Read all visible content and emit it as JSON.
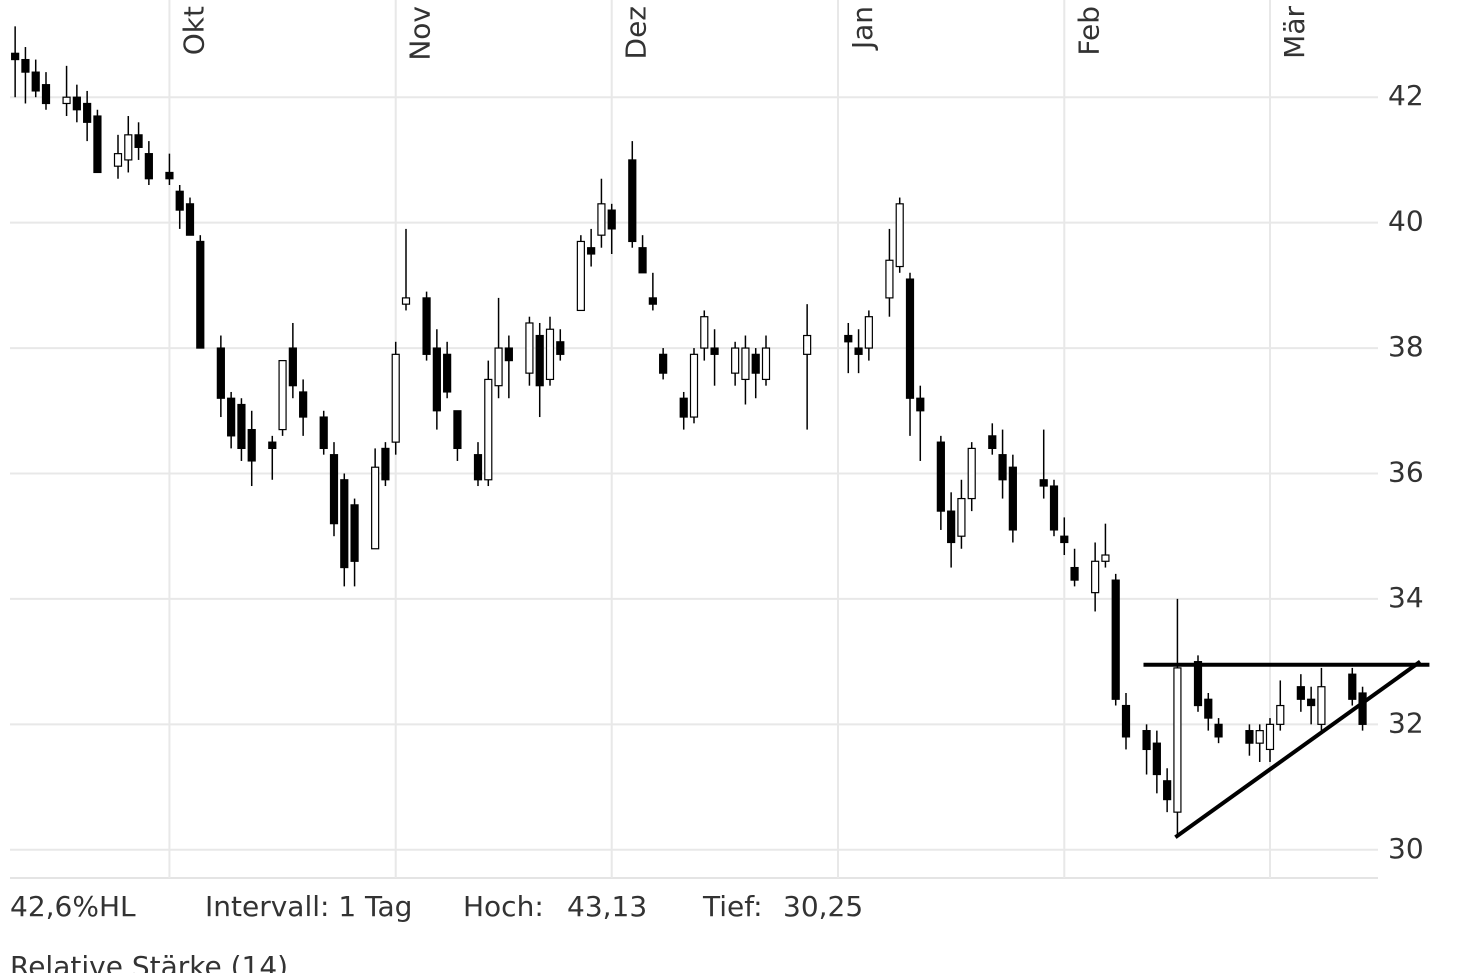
{
  "chart_data": {
    "type": "candlestick",
    "categories": [
      null,
      null,
      null,
      null,
      null,
      null,
      null,
      null,
      null,
      null,
      null,
      null,
      null,
      null,
      null,
      "Okt",
      null,
      null,
      null,
      null,
      null,
      null,
      null,
      null,
      null,
      null,
      null,
      null,
      null,
      null,
      null,
      null,
      null,
      null,
      null,
      null,
      null,
      "Nov",
      null,
      null,
      null,
      null,
      null,
      null,
      null,
      null,
      null,
      null,
      null,
      null,
      null,
      null,
      null,
      null,
      null,
      null,
      null,
      null,
      "Dez",
      null,
      null,
      null,
      null,
      null,
      null,
      null,
      null,
      null,
      null,
      null,
      null,
      null,
      null,
      null,
      null,
      null,
      null,
      null,
      null,
      null,
      "Jan",
      null,
      null,
      null,
      null,
      null,
      null,
      null,
      null,
      null,
      null,
      null,
      null,
      null,
      null,
      null,
      null,
      null,
      null,
      null,
      null,
      null,
      "Feb",
      null,
      null,
      null,
      null,
      null,
      null,
      null,
      null,
      null,
      null,
      null,
      null,
      null,
      null,
      null,
      null,
      null,
      null,
      null,
      "Mär",
      null,
      null,
      null,
      null,
      null,
      null,
      null,
      null,
      null,
      null
    ],
    "open": [
      42.7,
      42.6,
      42.4,
      42.2,
      null,
      41.9,
      42.0,
      41.9,
      41.7,
      null,
      40.9,
      41.0,
      41.4,
      41.1,
      null,
      40.8,
      40.5,
      40.3,
      39.7,
      null,
      38.0,
      37.2,
      37.1,
      36.7,
      null,
      36.5,
      36.7,
      38.0,
      37.3,
      null,
      36.9,
      36.3,
      35.9,
      35.5,
      null,
      34.8,
      36.4,
      36.5,
      38.7,
      null,
      38.8,
      38.0,
      37.9,
      37.0,
      null,
      36.3,
      35.9,
      37.4,
      38.0,
      null,
      37.6,
      38.2,
      37.5,
      38.1,
      null,
      38.6,
      39.6,
      39.8,
      40.2,
      null,
      41.0,
      39.6,
      38.8,
      37.9,
      null,
      37.2,
      36.9,
      38.0,
      38.0,
      null,
      37.6,
      37.5,
      37.9,
      37.5,
      null,
      null,
      null,
      37.9,
      null,
      null,
      null,
      38.2,
      38.0,
      38.0,
      null,
      38.8,
      39.3,
      39.1,
      37.2,
      null,
      36.5,
      35.4,
      35.0,
      35.6,
      null,
      36.6,
      36.3,
      36.1,
      null,
      null,
      35.9,
      35.8,
      35.0,
      34.5,
      null,
      34.1,
      34.6,
      34.3,
      32.3,
      null,
      31.9,
      31.7,
      31.1,
      30.6,
      null,
      33.0,
      32.4,
      32.0,
      null,
      null,
      31.9,
      31.7,
      31.6,
      32.0,
      null,
      32.6,
      32.4,
      32.0,
      null,
      null,
      32.8,
      32.5,
      null
    ],
    "high": [
      43.13,
      42.8,
      42.6,
      42.4,
      null,
      42.5,
      42.2,
      42.1,
      41.8,
      null,
      41.4,
      41.7,
      41.6,
      41.3,
      null,
      41.1,
      40.6,
      40.4,
      39.8,
      null,
      38.2,
      37.3,
      37.2,
      37.0,
      null,
      36.6,
      37.8,
      38.4,
      37.5,
      null,
      37.0,
      36.5,
      36.0,
      35.6,
      null,
      36.4,
      36.5,
      38.1,
      39.9,
      null,
      38.9,
      38.3,
      38.1,
      37.0,
      null,
      36.5,
      37.8,
      38.8,
      38.2,
      null,
      38.5,
      38.4,
      38.5,
      38.3,
      null,
      39.8,
      39.9,
      40.7,
      40.3,
      null,
      41.3,
      39.8,
      39.2,
      38.0,
      null,
      37.3,
      38.0,
      38.6,
      38.3,
      null,
      38.1,
      38.2,
      38.0,
      38.2,
      null,
      null,
      null,
      38.7,
      null,
      null,
      null,
      38.4,
      38.3,
      38.6,
      null,
      39.9,
      40.4,
      39.2,
      37.4,
      null,
      36.6,
      35.7,
      35.9,
      36.5,
      null,
      36.8,
      36.7,
      36.3,
      null,
      null,
      36.7,
      35.9,
      35.3,
      34.8,
      null,
      34.9,
      35.2,
      34.4,
      32.5,
      null,
      32.0,
      31.9,
      31.3,
      34.0,
      null,
      33.1,
      32.5,
      32.1,
      null,
      null,
      32.0,
      32.0,
      32.1,
      32.7,
      null,
      32.8,
      32.6,
      32.9,
      null,
      null,
      32.9,
      32.6,
      null
    ],
    "low": [
      42.0,
      41.9,
      42.0,
      41.8,
      null,
      41.7,
      41.6,
      41.3,
      40.8,
      null,
      40.7,
      40.8,
      41.0,
      40.6,
      null,
      40.6,
      39.9,
      39.8,
      38.0,
      null,
      36.9,
      36.4,
      36.2,
      35.8,
      null,
      35.9,
      36.6,
      37.2,
      36.6,
      null,
      36.3,
      35.0,
      34.2,
      34.2,
      null,
      34.8,
      35.8,
      36.3,
      38.6,
      null,
      37.8,
      36.7,
      37.2,
      36.2,
      null,
      35.8,
      35.8,
      37.2,
      37.2,
      null,
      37.4,
      36.9,
      37.4,
      37.8,
      null,
      38.6,
      39.3,
      39.6,
      39.5,
      null,
      39.6,
      39.2,
      38.6,
      37.5,
      null,
      36.7,
      36.8,
      37.8,
      37.4,
      null,
      37.4,
      37.1,
      37.2,
      37.4,
      null,
      null,
      null,
      36.7,
      null,
      null,
      null,
      37.6,
      37.6,
      37.8,
      null,
      38.5,
      39.2,
      36.6,
      36.2,
      null,
      35.1,
      34.5,
      34.8,
      35.4,
      null,
      36.3,
      35.6,
      34.9,
      null,
      null,
      35.6,
      35.0,
      34.7,
      34.2,
      null,
      33.8,
      34.5,
      32.3,
      31.6,
      null,
      31.2,
      30.9,
      30.6,
      30.25,
      null,
      32.2,
      31.9,
      31.7,
      null,
      null,
      31.5,
      31.4,
      31.4,
      31.9,
      null,
      32.2,
      32.0,
      31.9,
      null,
      null,
      32.3,
      31.9,
      null
    ],
    "close": [
      42.6,
      42.4,
      42.1,
      41.9,
      null,
      42.0,
      41.8,
      41.6,
      40.8,
      null,
      41.1,
      41.4,
      41.2,
      40.7,
      null,
      40.7,
      40.2,
      39.8,
      38.0,
      null,
      37.2,
      36.6,
      36.4,
      36.2,
      null,
      36.4,
      37.8,
      37.4,
      36.9,
      null,
      36.4,
      35.2,
      34.5,
      34.6,
      null,
      36.1,
      35.9,
      37.9,
      38.8,
      null,
      37.9,
      37.0,
      37.3,
      36.4,
      null,
      35.9,
      37.5,
      38.0,
      37.8,
      null,
      38.4,
      37.4,
      38.3,
      37.9,
      null,
      39.7,
      39.5,
      40.3,
      39.9,
      null,
      39.7,
      39.2,
      38.7,
      37.6,
      null,
      36.9,
      37.9,
      38.5,
      37.9,
      null,
      38.0,
      38.0,
      37.6,
      38.0,
      null,
      null,
      null,
      38.2,
      null,
      null,
      null,
      38.1,
      37.9,
      38.5,
      null,
      39.4,
      40.3,
      37.2,
      37.0,
      null,
      35.4,
      34.9,
      35.6,
      36.4,
      null,
      36.4,
      35.9,
      35.1,
      null,
      null,
      35.8,
      35.1,
      34.9,
      34.3,
      null,
      34.6,
      34.7,
      32.4,
      31.8,
      null,
      31.6,
      31.2,
      30.8,
      32.9,
      null,
      32.3,
      32.1,
      31.8,
      null,
      null,
      31.7,
      31.9,
      32.0,
      32.3,
      null,
      32.4,
      32.3,
      32.6,
      null,
      null,
      32.4,
      32.0,
      null
    ],
    "ylim": [
      29.55,
      43.55
    ],
    "yticks": [
      30,
      32,
      34,
      36,
      38,
      40,
      42
    ],
    "grid": true,
    "color": "#000000",
    "trendlines": [
      {
        "x": [
          109.7,
          137.5
        ],
        "y": [
          32.95,
          32.95
        ]
      },
      {
        "x": [
          112.8,
          136.6
        ],
        "y": [
          30.2,
          33.0
        ]
      }
    ],
    "footer": {
      "range": "42,6%HL",
      "interval": "Intervall: 1 Tag",
      "high_label": "Hoch:",
      "high": "43,13",
      "low_label": "Tief:",
      "low": "30,25",
      "indicator": "Relative Stärke (14)"
    }
  }
}
